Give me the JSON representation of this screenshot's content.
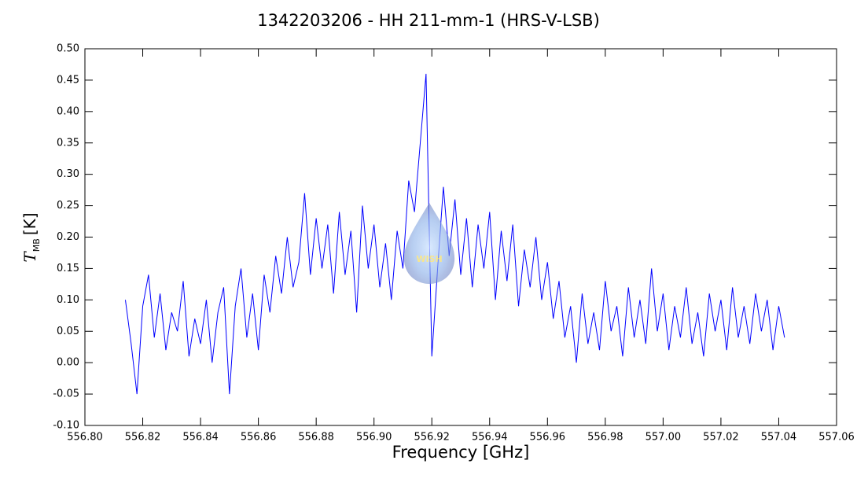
{
  "chart_data": {
    "type": "line",
    "title": "1342203206 - HH 211-mm-1 (HRS-V-LSB)",
    "xlabel": "Frequency [GHz]",
    "ylabel": "T",
    "ylabel_subscript": "MB",
    "ylabel_unit": "[K]",
    "watermark": "WISH",
    "xlim": [
      556.8,
      557.06
    ],
    "ylim": [
      -0.1,
      0.5
    ],
    "xticks": [
      {
        "value": 556.8,
        "label": "556.80"
      },
      556.82,
      556.84,
      556.86,
      556.88,
      {
        "value": 556.9,
        "label": "556.90"
      },
      556.92,
      556.94,
      556.96,
      556.98,
      {
        "value": 557.0,
        "label": "557.00"
      },
      557.02,
      557.04,
      557.06
    ],
    "yticks": [
      {
        "value": -0.1,
        "label": "-0.10"
      },
      -0.05,
      {
        "value": 0.0,
        "label": "0.00"
      },
      0.05,
      {
        "value": 0.1,
        "label": "0.10"
      },
      0.15,
      {
        "value": 0.2,
        "label": "0.20"
      },
      0.25,
      {
        "value": 0.3,
        "label": "0.30"
      },
      0.35,
      {
        "value": 0.4,
        "label": "0.40"
      },
      0.45,
      {
        "value": 0.5,
        "label": "0.50"
      }
    ],
    "x": [
      556.814,
      556.816,
      556.818,
      556.82,
      556.822,
      556.824,
      556.826,
      556.828,
      556.83,
      556.832,
      556.834,
      556.836,
      556.838,
      556.84,
      556.842,
      556.844,
      556.846,
      556.848,
      556.85,
      556.852,
      556.854,
      556.856,
      556.858,
      556.86,
      556.862,
      556.864,
      556.866,
      556.868,
      556.87,
      556.872,
      556.874,
      556.876,
      556.878,
      556.88,
      556.882,
      556.884,
      556.886,
      556.888,
      556.89,
      556.892,
      556.894,
      556.896,
      556.898,
      556.9,
      556.902,
      556.904,
      556.906,
      556.908,
      556.91,
      556.912,
      556.914,
      556.916,
      556.918,
      556.92,
      556.922,
      556.924,
      556.926,
      556.928,
      556.93,
      556.932,
      556.934,
      556.936,
      556.938,
      556.94,
      556.942,
      556.944,
      556.946,
      556.948,
      556.95,
      556.952,
      556.954,
      556.956,
      556.958,
      556.96,
      556.962,
      556.964,
      556.966,
      556.968,
      556.97,
      556.972,
      556.974,
      556.976,
      556.978,
      556.98,
      556.982,
      556.984,
      556.986,
      556.988,
      556.99,
      556.992,
      556.994,
      556.996,
      556.998,
      557.0,
      557.002,
      557.004,
      557.006,
      557.008,
      557.01,
      557.012,
      557.014,
      557.016,
      557.018,
      557.02,
      557.022,
      557.024,
      557.026,
      557.028,
      557.03,
      557.032,
      557.034,
      557.036,
      557.038,
      557.04,
      557.042
    ],
    "series": [
      {
        "name": "HRS-V-LSB",
        "color": "#0000ff",
        "values": [
          0.1,
          0.03,
          -0.05,
          0.09,
          0.14,
          0.04,
          0.11,
          0.02,
          0.08,
          0.05,
          0.13,
          0.01,
          0.07,
          0.03,
          0.1,
          0.0,
          0.08,
          0.12,
          -0.05,
          0.09,
          0.15,
          0.04,
          0.11,
          0.02,
          0.14,
          0.08,
          0.17,
          0.11,
          0.2,
          0.12,
          0.16,
          0.27,
          0.14,
          0.23,
          0.15,
          0.22,
          0.11,
          0.24,
          0.14,
          0.21,
          0.08,
          0.25,
          0.15,
          0.22,
          0.12,
          0.19,
          0.1,
          0.21,
          0.15,
          0.29,
          0.24,
          0.35,
          0.46,
          0.01,
          0.15,
          0.28,
          0.17,
          0.26,
          0.14,
          0.23,
          0.12,
          0.22,
          0.15,
          0.24,
          0.1,
          0.21,
          0.13,
          0.22,
          0.09,
          0.18,
          0.12,
          0.2,
          0.1,
          0.16,
          0.07,
          0.13,
          0.04,
          0.09,
          0.0,
          0.11,
          0.03,
          0.08,
          0.02,
          0.13,
          0.05,
          0.09,
          0.01,
          0.12,
          0.04,
          0.1,
          0.03,
          0.15,
          0.05,
          0.11,
          0.02,
          0.09,
          0.04,
          0.12,
          0.03,
          0.08,
          0.01,
          0.11,
          0.05,
          0.1,
          0.02,
          0.12,
          0.04,
          0.09,
          0.03,
          0.11,
          0.05,
          0.1,
          0.02,
          0.09,
          0.04
        ]
      }
    ]
  }
}
